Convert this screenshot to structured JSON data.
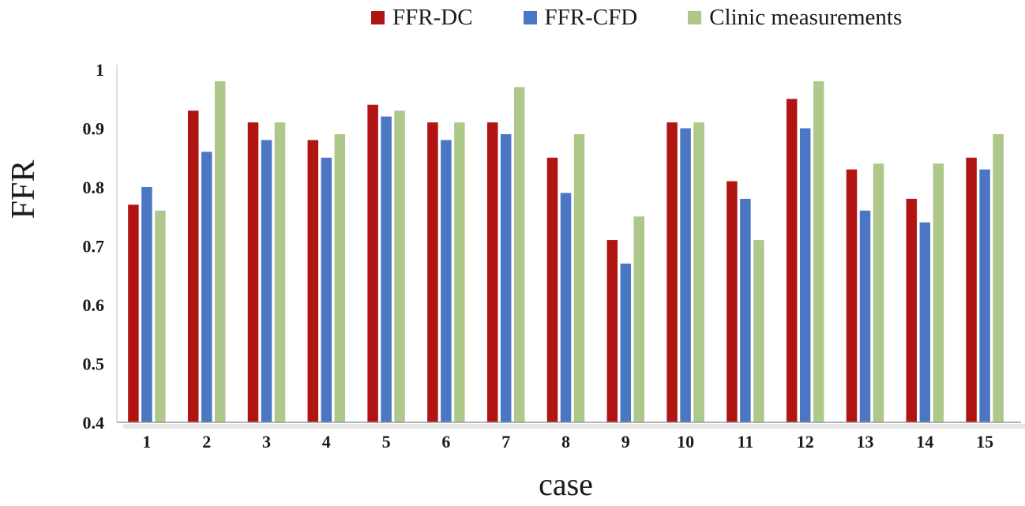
{
  "chart_data": {
    "type": "bar",
    "title": "",
    "xlabel": "case",
    "ylabel": "FFR",
    "ylim": [
      0.4,
      1.0
    ],
    "ytick_values": [
      0.4,
      0.5,
      0.6,
      0.7,
      0.8,
      0.9,
      1.0
    ],
    "ytick_labels": [
      "0.4",
      "0.5",
      "0.6",
      "0.7",
      "0.8",
      "0.9",
      "1"
    ],
    "categories": [
      "1",
      "2",
      "3",
      "4",
      "5",
      "6",
      "7",
      "8",
      "9",
      "10",
      "11",
      "12",
      "13",
      "14",
      "15"
    ],
    "series": [
      {
        "name": "FFR-DC",
        "color": "#b01513",
        "values": [
          0.77,
          0.93,
          0.91,
          0.88,
          0.94,
          0.91,
          0.91,
          0.85,
          0.71,
          0.91,
          0.81,
          0.95,
          0.83,
          0.78,
          0.85
        ]
      },
      {
        "name": "FFR-CFD",
        "color": "#4a76c4",
        "values": [
          0.8,
          0.86,
          0.88,
          0.85,
          0.92,
          0.88,
          0.89,
          0.79,
          0.67,
          0.9,
          0.78,
          0.9,
          0.76,
          0.74,
          0.83
        ]
      },
      {
        "name": "Clinic measurements",
        "color": "#adc88a",
        "values": [
          0.76,
          0.98,
          0.91,
          0.89,
          0.93,
          0.91,
          0.97,
          0.89,
          0.75,
          0.91,
          0.71,
          0.98,
          0.84,
          0.84,
          0.89
        ]
      }
    ],
    "legend_position": "top",
    "grid": false
  }
}
